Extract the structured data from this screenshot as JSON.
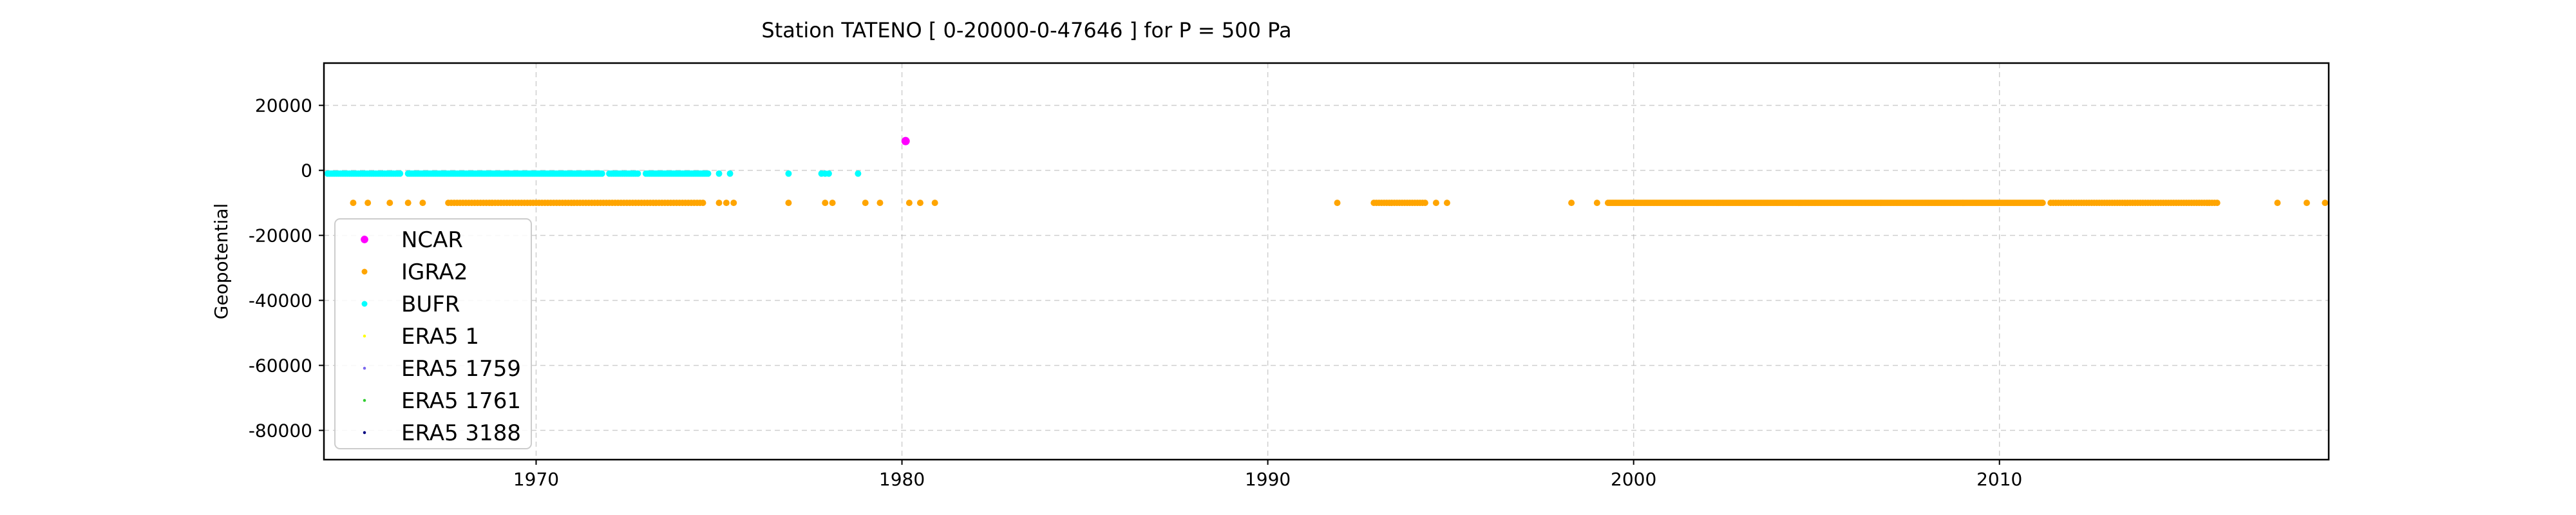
{
  "chart_data": {
    "type": "scatter",
    "title": "Station  TATENO [ 0-20000-0-47646 ]  for P = 500 Pa",
    "xlabel": "",
    "ylabel": "Geopotential",
    "xlim": [
      1964.2,
      2019.0
    ],
    "ylim": [
      -89000,
      33000
    ],
    "xticks": [
      1970,
      1980,
      1990,
      2000,
      2010
    ],
    "yticks": [
      20000,
      0,
      -20000,
      -40000,
      -60000,
      -80000
    ],
    "grid": true,
    "legend_position": "lower-left",
    "series": [
      {
        "name": "NCAR",
        "color": "#ff00ff",
        "marker_size": "large",
        "points": [
          [
            1980.1,
            9000
          ]
        ]
      },
      {
        "name": "IGRA2",
        "color": "#ffa500",
        "marker_size": "medium",
        "segments": [
          {
            "x_start": 1967.6,
            "x_end": 1974.6,
            "y": -10000,
            "step": 0.08
          },
          {
            "x_start": 1992.9,
            "x_end": 1994.3,
            "y": -10000,
            "step": 0.07
          },
          {
            "x_start": 1999.3,
            "x_end": 2011.2,
            "y": -10000,
            "step": 0.04
          },
          {
            "x_start": 2011.4,
            "x_end": 2016.0,
            "y": -10000,
            "step": 0.07
          }
        ],
        "points": [
          [
            1965.0,
            -10000
          ],
          [
            1965.4,
            -10000
          ],
          [
            1966.0,
            -10000
          ],
          [
            1966.5,
            -10000
          ],
          [
            1966.9,
            -10000
          ],
          [
            1975.0,
            -10000
          ],
          [
            1975.2,
            -10000
          ],
          [
            1975.4,
            -10000
          ],
          [
            1976.9,
            -10000
          ],
          [
            1977.9,
            -10000
          ],
          [
            1978.1,
            -10000
          ],
          [
            1979.0,
            -10000
          ],
          [
            1979.4,
            -10000
          ],
          [
            1980.2,
            -10000
          ],
          [
            1980.5,
            -10000
          ],
          [
            1980.9,
            -10000
          ],
          [
            1991.9,
            -10000
          ],
          [
            1994.6,
            -10000
          ],
          [
            1994.9,
            -10000
          ],
          [
            1998.3,
            -10000
          ],
          [
            1999.0,
            -10000
          ],
          [
            2017.6,
            -10000
          ],
          [
            2018.4,
            -10000
          ],
          [
            2018.9,
            -10000
          ]
        ]
      },
      {
        "name": "BUFR",
        "color": "#00ffff",
        "marker_size": "medium",
        "segments": [
          {
            "x_start": 1964.3,
            "x_end": 1966.3,
            "y": -1000,
            "step": 0.06
          },
          {
            "x_start": 1966.5,
            "x_end": 1971.8,
            "y": -1000,
            "step": 0.05
          },
          {
            "x_start": 1972.0,
            "x_end": 1972.8,
            "y": -1000,
            "step": 0.06
          },
          {
            "x_start": 1973.0,
            "x_end": 1974.7,
            "y": -1000,
            "step": 0.05
          }
        ],
        "points": [
          [
            1975.0,
            -1000
          ],
          [
            1975.3,
            -1000
          ],
          [
            1976.9,
            -1000
          ],
          [
            1977.8,
            -1000
          ],
          [
            1977.9,
            -1000
          ],
          [
            1978.0,
            -1000
          ],
          [
            1978.8,
            -1000
          ]
        ]
      },
      {
        "name": "ERA5 1",
        "color": "#ffff00",
        "marker_size": "small",
        "points": []
      },
      {
        "name": "ERA5 1759",
        "color": "#7b68ee",
        "marker_size": "small",
        "points": []
      },
      {
        "name": "ERA5 1761",
        "color": "#32cd32",
        "marker_size": "small",
        "points": []
      },
      {
        "name": "ERA5 3188",
        "color": "#000080",
        "marker_size": "small",
        "points": []
      }
    ]
  }
}
